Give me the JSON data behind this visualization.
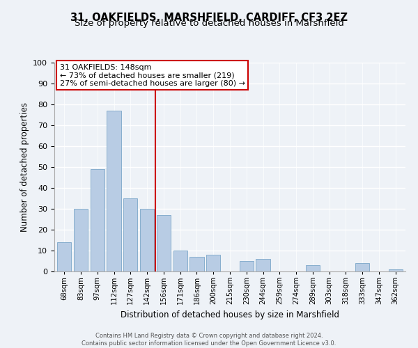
{
  "title_line1": "31, OAKFIELDS, MARSHFIELD, CARDIFF, CF3 2EZ",
  "title_line2": "Size of property relative to detached houses in Marshfield",
  "xlabel": "Distribution of detached houses by size in Marshfield",
  "ylabel": "Number of detached properties",
  "bar_labels": [
    "68sqm",
    "83sqm",
    "97sqm",
    "112sqm",
    "127sqm",
    "142sqm",
    "156sqm",
    "171sqm",
    "186sqm",
    "200sqm",
    "215sqm",
    "230sqm",
    "244sqm",
    "259sqm",
    "274sqm",
    "289sqm",
    "303sqm",
    "318sqm",
    "333sqm",
    "347sqm",
    "362sqm"
  ],
  "bar_values": [
    14,
    30,
    49,
    77,
    35,
    30,
    27,
    10,
    7,
    8,
    0,
    5,
    6,
    0,
    0,
    3,
    0,
    0,
    4,
    0,
    1
  ],
  "bar_color": "#b8cce4",
  "bar_edge_color": "#7ba7c9",
  "vline_x": 5.5,
  "vline_color": "#cc0000",
  "annotation_title": "31 OAKFIELDS: 148sqm",
  "annotation_line1": "← 73% of detached houses are smaller (219)",
  "annotation_line2": "27% of semi-detached houses are larger (80) →",
  "annotation_box_color": "white",
  "annotation_box_edge": "#cc0000",
  "ylim": [
    0,
    100
  ],
  "yticks": [
    0,
    10,
    20,
    30,
    40,
    50,
    60,
    70,
    80,
    90,
    100
  ],
  "footer_line1": "Contains HM Land Registry data © Crown copyright and database right 2024.",
  "footer_line2": "Contains public sector information licensed under the Open Government Licence v3.0.",
  "bg_color": "#eef2f7",
  "grid_color": "white",
  "title_fontsize": 10.5,
  "subtitle_fontsize": 9.5
}
